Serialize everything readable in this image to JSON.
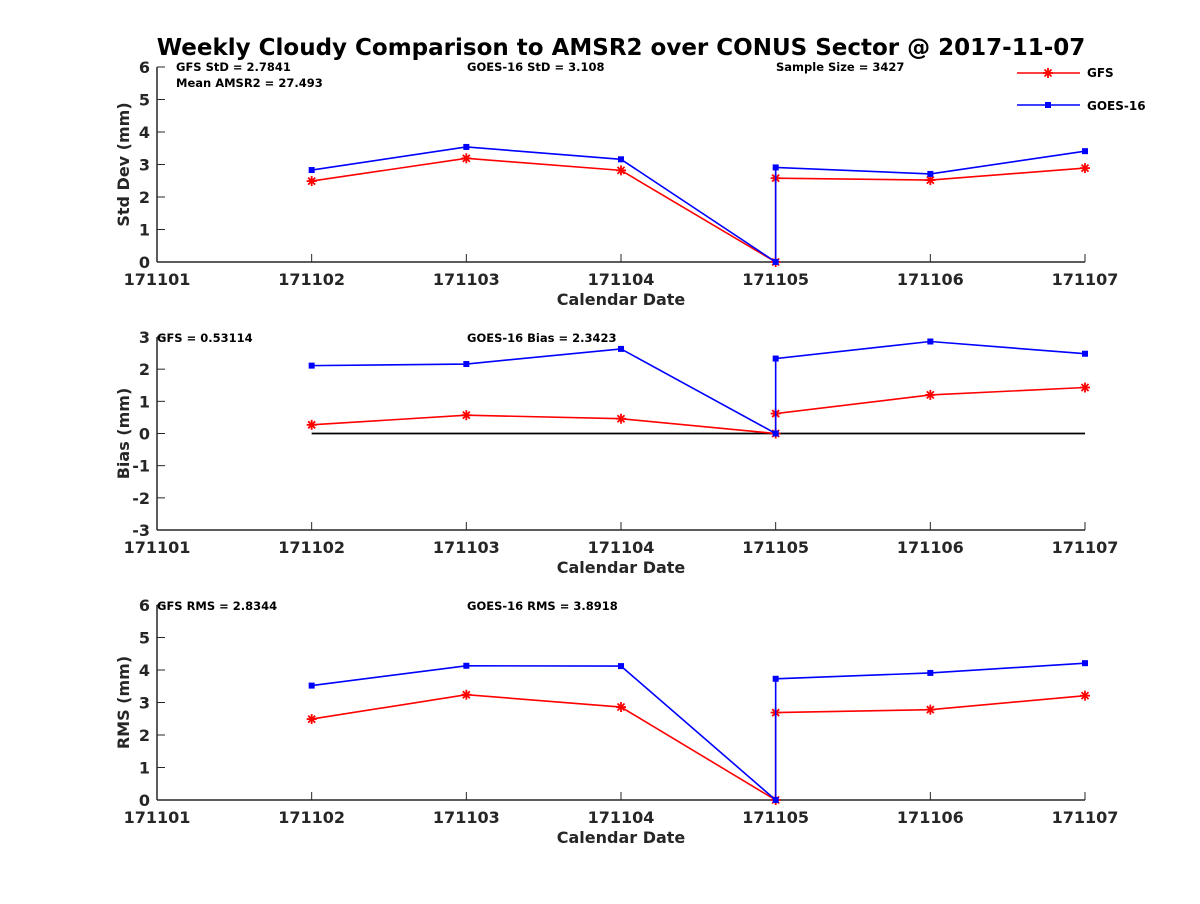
{
  "chart_data": {
    "type": "line",
    "title": "Weekly Cloudy Comparison to AMSR2 over CONUS Sector @ 2017-11-07",
    "legend": {
      "placement": "top-right",
      "entries": [
        "GFS",
        "GOES-16"
      ]
    },
    "colors": {
      "GFS": "#ff0000",
      "GOES-16": "#0000ff",
      "zero_line": "#000000"
    },
    "x_tick_labels": [
      "171101",
      "171102",
      "171103",
      "171104",
      "171105",
      "171106",
      "171107"
    ],
    "x_day_index": [
      1,
      2,
      3,
      4,
      4,
      5,
      6
    ],
    "panels": [
      {
        "ylabel": "Std Dev (mm)",
        "xlabel": "Calendar Date",
        "ylim": [
          0,
          6
        ],
        "yticks": [
          "0",
          "1",
          "2",
          "3",
          "4",
          "5",
          "6"
        ],
        "zero_line": false,
        "annotations": [
          "GFS StD = 2.7841",
          "Mean AMSR2 = 27.493",
          "GOES-16 StD = 3.108",
          "Sample Size = 3427"
        ],
        "series": [
          {
            "name": "GFS",
            "marker": "asterisk",
            "values": [
              2.49,
              3.19,
              2.82,
              0,
              2.58,
              2.52,
              2.89
            ]
          },
          {
            "name": "GOES-16",
            "marker": "square",
            "values": [
              2.83,
              3.54,
              3.16,
              0,
              2.91,
              2.71,
              3.41
            ]
          }
        ]
      },
      {
        "ylabel": "Bias (mm)",
        "xlabel": "Calendar Date",
        "ylim": [
          -3,
          3
        ],
        "yticks": [
          "-3",
          "-2",
          "-1",
          "0",
          "1",
          "2",
          "3"
        ],
        "zero_line": true,
        "annotations": [
          "GFS = 0.53114",
          "GOES-16 Bias  = 2.3423"
        ],
        "series": [
          {
            "name": "GFS",
            "marker": "asterisk",
            "values": [
              0.27,
              0.57,
              0.46,
              0,
              0.62,
              1.2,
              1.43
            ]
          },
          {
            "name": "GOES-16",
            "marker": "square",
            "values": [
              2.11,
              2.16,
              2.63,
              0,
              2.33,
              2.86,
              2.48
            ]
          }
        ]
      },
      {
        "ylabel": "RMS (mm)",
        "xlabel": "Calendar Date",
        "ylim": [
          0,
          6
        ],
        "yticks": [
          "0",
          "1",
          "2",
          "3",
          "4",
          "5",
          "6"
        ],
        "zero_line": false,
        "annotations": [
          "GFS RMS = 2.8344",
          "GOES-16 RMS = 3.8918"
        ],
        "series": [
          {
            "name": "GFS",
            "marker": "asterisk",
            "values": [
              2.49,
              3.24,
              2.86,
              0,
              2.69,
              2.78,
              3.21
            ]
          },
          {
            "name": "GOES-16",
            "marker": "square",
            "values": [
              3.52,
              4.13,
              4.12,
              0,
              3.73,
              3.91,
              4.21
            ]
          }
        ]
      }
    ]
  }
}
